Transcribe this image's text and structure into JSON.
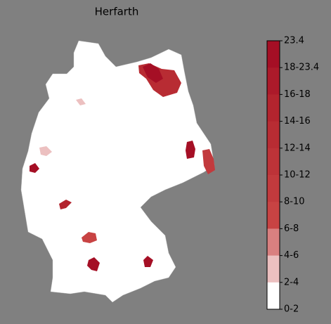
{
  "title": "Herfarth",
  "colorbar": {
    "labels": [
      "23.4",
      "18-23.4",
      "16-18",
      "14-16",
      "12-14",
      "10-12",
      "8-10",
      "6-8",
      "4-6",
      "2-4",
      "0-2"
    ],
    "colors": [
      "#a50f25",
      "#ac1a2a",
      "#b3242e",
      "#b82c33",
      "#bd3338",
      "#c23a3d",
      "#c84343",
      "#d98080",
      "#ecc0c0",
      "#ffffff"
    ]
  }
}
